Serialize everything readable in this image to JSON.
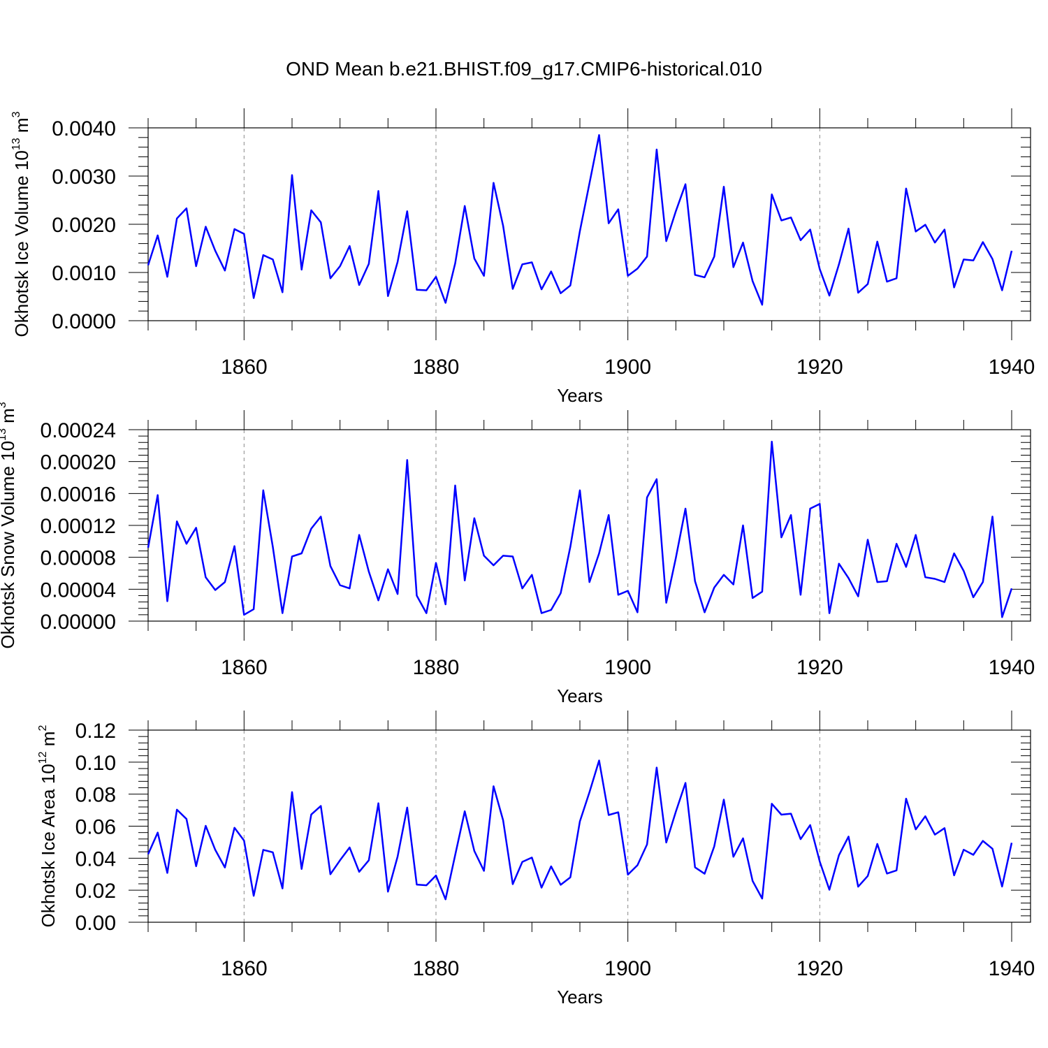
{
  "colors": {
    "line": "#0000ff",
    "axis": "#000000",
    "grid": "#888888"
  },
  "chart_data": [
    {
      "type": "line",
      "title": "OND Mean b.e21.BHIST.f09_g17.CMIP6-historical.010",
      "xlabel": "Years",
      "ylabel": {
        "main": "Okhotsk Ice Volume 10",
        "exp": "13",
        "unit": " m",
        "unit_exp": "3"
      },
      "xlim": [
        1850,
        1940
      ],
      "ylim": [
        0,
        0.004
      ],
      "xticks": [
        1860,
        1880,
        1900,
        1920,
        1940
      ],
      "xtick_labels": [
        "1860",
        "1880",
        "1900",
        "1920",
        "1940"
      ],
      "yticks": [
        0,
        0.001,
        0.002,
        0.003,
        0.004
      ],
      "ytick_labels": [
        "0.0000",
        "0.0010",
        "0.0020",
        "0.0030",
        "0.0040"
      ],
      "grid": "dashed vertical at major x ticks",
      "x_start": 1850,
      "series": [
        {
          "name": "Okhotsk Ice Volume",
          "values": [
            0.00115,
            0.00177,
            0.00091,
            0.00212,
            0.00233,
            0.00113,
            0.00195,
            0.00145,
            0.00104,
            0.0019,
            0.0018,
            0.00047,
            0.00136,
            0.00127,
            0.00059,
            0.00302,
            0.00106,
            0.00229,
            0.00204,
            0.00088,
            0.00113,
            0.00155,
            0.00074,
            0.00118,
            0.00269,
            0.00051,
            0.00122,
            0.00227,
            0.00064,
            0.00063,
            0.00091,
            0.00037,
            0.00119,
            0.00238,
            0.00129,
            0.00093,
            0.00286,
            0.00197,
            0.00066,
            0.00117,
            0.00121,
            0.00065,
            0.00102,
            0.00057,
            0.00073,
            0.00186,
            0.00285,
            0.00385,
            0.00202,
            0.00231,
            0.00093,
            0.00108,
            0.00133,
            0.00355,
            0.00165,
            0.00227,
            0.00283,
            0.00095,
            0.0009,
            0.00133,
            0.00278,
            0.00111,
            0.00162,
            0.00082,
            0.00033,
            0.00262,
            0.00208,
            0.00214,
            0.00167,
            0.00189,
            0.00107,
            0.00052,
            0.00117,
            0.00191,
            0.00058,
            0.00076,
            0.00164,
            0.00081,
            0.00088,
            0.00274,
            0.00185,
            0.00199,
            0.00162,
            0.00189,
            0.00069,
            0.00127,
            0.00125,
            0.00163,
            0.00128,
            0.00063,
            0.00145
          ]
        }
      ]
    },
    {
      "type": "line",
      "xlabel": "Years",
      "ylabel": {
        "main": "Okhotsk Snow Volume 10",
        "exp": "13",
        "unit": " m",
        "unit_exp": "3"
      },
      "xlim": [
        1850,
        1940
      ],
      "ylim": [
        0,
        0.00024
      ],
      "xticks": [
        1860,
        1880,
        1900,
        1920,
        1940
      ],
      "xtick_labels": [
        "1860",
        "1880",
        "1900",
        "1920",
        "1940"
      ],
      "yticks": [
        0,
        4e-05,
        8e-05,
        0.00012,
        0.00016,
        0.0002,
        0.00024
      ],
      "ytick_labels": [
        "0.00000",
        "0.00004",
        "0.00008",
        "0.00012",
        "0.00016",
        "0.00020",
        "0.00024"
      ],
      "grid": "dashed vertical at major x ticks",
      "x_start": 1850,
      "series": [
        {
          "name": "Okhotsk Snow Volume",
          "values": [
            9.2e-05,
            0.000158,
            2.5e-05,
            0.000125,
            9.7e-05,
            0.000117,
            5.5e-05,
            3.9e-05,
            4.9e-05,
            9.4e-05,
            8e-06,
            1.5e-05,
            0.000164,
            9.3e-05,
            1e-05,
            8.1e-05,
            8.5e-05,
            0.000116,
            0.000131,
            6.9e-05,
            4.5e-05,
            4.1e-05,
            0.000108,
            6.2e-05,
            2.6e-05,
            6.5e-05,
            3.4e-05,
            0.000202,
            3.2e-05,
            1e-05,
            7.3e-05,
            2.1e-05,
            0.00017,
            5.1e-05,
            0.000129,
            8.2e-05,
            7e-05,
            8.2e-05,
            8.1e-05,
            4.1e-05,
            5.8e-05,
            1e-05,
            1.4e-05,
            3.5e-05,
            9.3e-05,
            0.000164,
            4.9e-05,
            8.5e-05,
            0.000133,
            3.3e-05,
            3.8e-05,
            1.1e-05,
            0.000155,
            0.000178,
            2.3e-05,
            7.9e-05,
            0.000141,
            5e-05,
            1.1e-05,
            4.2e-05,
            5.8e-05,
            4.6e-05,
            0.00012,
            2.9e-05,
            3.7e-05,
            0.000225,
            0.000105,
            0.000133,
            3.3e-05,
            0.000141,
            0.000147,
            1e-05,
            7.2e-05,
            5.4e-05,
            3.1e-05,
            0.000102,
            4.9e-05,
            5e-05,
            9.7e-05,
            6.8e-05,
            0.000108,
            5.5e-05,
            5.3e-05,
            4.9e-05,
            8.5e-05,
            6.3e-05,
            3e-05,
            4.9e-05,
            0.000131,
            5e-06,
            4.1e-05
          ]
        }
      ]
    },
    {
      "type": "line",
      "xlabel": "Years",
      "ylabel": {
        "main": "Okhotsk Ice Area 10",
        "exp": "12",
        "unit": " m",
        "unit_exp": "2"
      },
      "xlim": [
        1850,
        1940
      ],
      "ylim": [
        0,
        0.12
      ],
      "xticks": [
        1860,
        1880,
        1900,
        1920,
        1940
      ],
      "xtick_labels": [
        "1860",
        "1880",
        "1900",
        "1920",
        "1940"
      ],
      "yticks": [
        0,
        0.02,
        0.04,
        0.06,
        0.08,
        0.1,
        0.12
      ],
      "ytick_labels": [
        "0.00",
        "0.02",
        "0.04",
        "0.06",
        "0.08",
        "0.10",
        "0.12"
      ],
      "grid": "dashed vertical at major x ticks",
      "x_start": 1850,
      "series": [
        {
          "name": "Okhotsk Ice Area",
          "values": [
            0.0425,
            0.056,
            0.0308,
            0.0703,
            0.0645,
            0.035,
            0.0602,
            0.0452,
            0.0342,
            0.059,
            0.051,
            0.0165,
            0.0452,
            0.0437,
            0.0211,
            0.0813,
            0.0333,
            0.0673,
            0.0726,
            0.03,
            0.0387,
            0.0467,
            0.0315,
            0.0387,
            0.0743,
            0.0191,
            0.041,
            0.0716,
            0.0235,
            0.0231,
            0.0292,
            0.0143,
            0.042,
            0.0693,
            0.0445,
            0.0321,
            0.0849,
            0.0637,
            0.0238,
            0.0377,
            0.0404,
            0.0216,
            0.0349,
            0.0234,
            0.028,
            0.063,
            0.0812,
            0.101,
            0.067,
            0.0687,
            0.0297,
            0.0356,
            0.0486,
            0.0966,
            0.0498,
            0.069,
            0.087,
            0.0343,
            0.0303,
            0.0474,
            0.0766,
            0.0409,
            0.0524,
            0.0258,
            0.0148,
            0.074,
            0.0672,
            0.0678,
            0.0519,
            0.0607,
            0.0379,
            0.0203,
            0.0419,
            0.0535,
            0.0222,
            0.0289,
            0.0489,
            0.0304,
            0.0324,
            0.0772,
            0.058,
            0.0662,
            0.0547,
            0.0588,
            0.0293,
            0.0453,
            0.0421,
            0.0508,
            0.0459,
            0.0223,
            0.0496
          ]
        }
      ]
    }
  ]
}
